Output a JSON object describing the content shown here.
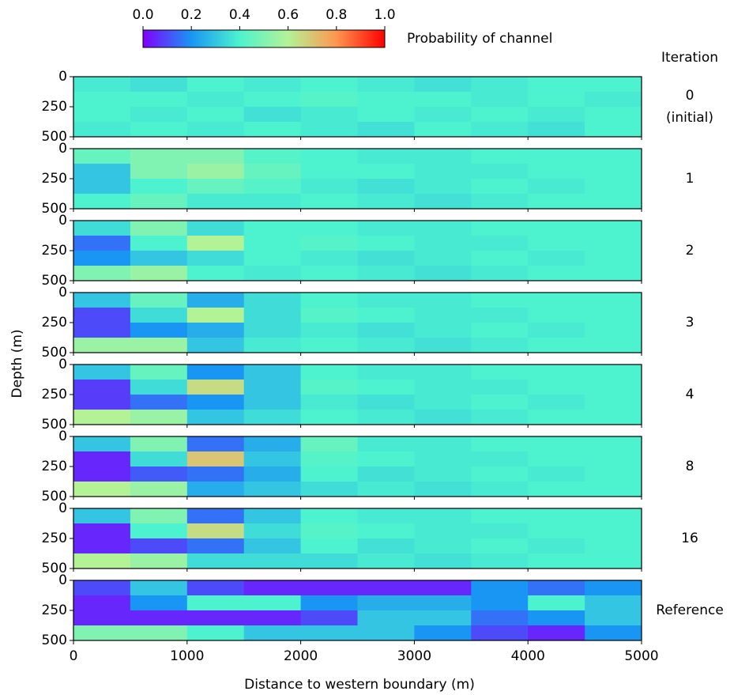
{
  "chart_data": {
    "type": "heatmap",
    "xlabel": "Distance to western boundary (m)",
    "ylabel": "Depth (m)",
    "panel_title": "Iteration",
    "xlim": [
      0,
      5000
    ],
    "xticks": [
      0,
      1000,
      2000,
      3000,
      4000,
      5000
    ],
    "ylim": [
      500,
      0
    ],
    "yticks": [
      0,
      250,
      500
    ],
    "x_edges": [
      0,
      500,
      1000,
      1500,
      2000,
      2500,
      3000,
      3500,
      4000,
      4500,
      5000
    ],
    "y_edges": [
      0,
      125,
      250,
      375,
      500
    ],
    "colorbar": {
      "label": "Probability of channel",
      "lim": [
        0,
        1
      ],
      "ticks": [
        {
          "value": 0,
          "label": "0.0"
        },
        {
          "value": 0.2,
          "label": "0.2"
        },
        {
          "value": 0.4,
          "label": "0.4"
        },
        {
          "value": 0.6,
          "label": "0.6"
        },
        {
          "value": 0.8,
          "label": "0.8"
        },
        {
          "value": 1,
          "label": "1.0"
        }
      ],
      "colors": [
        "#8000ff",
        "#1996f3",
        "#4df3ce",
        "#b3f396",
        "#ff964f",
        "#ff0000"
      ]
    },
    "panels": [
      {
        "name": "0",
        "note": "(initial)",
        "values": [
          [
            0.38,
            0.36,
            0.4,
            0.38,
            0.4,
            0.38,
            0.36,
            0.38,
            0.4,
            0.4
          ],
          [
            0.4,
            0.4,
            0.38,
            0.4,
            0.42,
            0.4,
            0.4,
            0.38,
            0.4,
            0.38
          ],
          [
            0.4,
            0.38,
            0.4,
            0.36,
            0.38,
            0.4,
            0.38,
            0.4,
            0.38,
            0.4
          ],
          [
            0.38,
            0.4,
            0.38,
            0.4,
            0.38,
            0.36,
            0.4,
            0.38,
            0.36,
            0.4
          ]
        ]
      },
      {
        "name": "1",
        "values": [
          [
            0.45,
            0.5,
            0.5,
            0.42,
            0.4,
            0.38,
            0.38,
            0.4,
            0.4,
            0.4
          ],
          [
            0.3,
            0.5,
            0.55,
            0.45,
            0.4,
            0.4,
            0.38,
            0.38,
            0.4,
            0.4
          ],
          [
            0.3,
            0.4,
            0.45,
            0.42,
            0.38,
            0.36,
            0.38,
            0.4,
            0.38,
            0.4
          ],
          [
            0.4,
            0.45,
            0.38,
            0.38,
            0.4,
            0.38,
            0.36,
            0.38,
            0.4,
            0.4
          ]
        ]
      },
      {
        "name": "2",
        "values": [
          [
            0.35,
            0.5,
            0.35,
            0.4,
            0.4,
            0.38,
            0.38,
            0.4,
            0.4,
            0.4
          ],
          [
            0.15,
            0.4,
            0.6,
            0.4,
            0.42,
            0.4,
            0.38,
            0.38,
            0.4,
            0.4
          ],
          [
            0.2,
            0.3,
            0.35,
            0.4,
            0.38,
            0.36,
            0.38,
            0.4,
            0.38,
            0.4
          ],
          [
            0.5,
            0.55,
            0.4,
            0.38,
            0.4,
            0.38,
            0.36,
            0.38,
            0.4,
            0.4
          ]
        ]
      },
      {
        "name": "3",
        "values": [
          [
            0.3,
            0.45,
            0.25,
            0.35,
            0.4,
            0.38,
            0.38,
            0.4,
            0.4,
            0.4
          ],
          [
            0.1,
            0.35,
            0.6,
            0.35,
            0.42,
            0.4,
            0.38,
            0.38,
            0.4,
            0.4
          ],
          [
            0.1,
            0.2,
            0.25,
            0.35,
            0.38,
            0.36,
            0.38,
            0.4,
            0.38,
            0.4
          ],
          [
            0.55,
            0.55,
            0.3,
            0.38,
            0.4,
            0.38,
            0.36,
            0.38,
            0.4,
            0.4
          ]
        ]
      },
      {
        "name": "4",
        "values": [
          [
            0.3,
            0.45,
            0.2,
            0.3,
            0.4,
            0.38,
            0.38,
            0.4,
            0.4,
            0.4
          ],
          [
            0.08,
            0.35,
            0.65,
            0.3,
            0.42,
            0.4,
            0.38,
            0.38,
            0.4,
            0.4
          ],
          [
            0.08,
            0.15,
            0.2,
            0.3,
            0.38,
            0.36,
            0.38,
            0.4,
            0.38,
            0.4
          ],
          [
            0.6,
            0.55,
            0.3,
            0.35,
            0.4,
            0.38,
            0.36,
            0.38,
            0.4,
            0.4
          ]
        ]
      },
      {
        "name": "8",
        "values": [
          [
            0.3,
            0.5,
            0.15,
            0.25,
            0.45,
            0.38,
            0.38,
            0.4,
            0.4,
            0.4
          ],
          [
            0.05,
            0.35,
            0.7,
            0.3,
            0.42,
            0.4,
            0.38,
            0.38,
            0.4,
            0.4
          ],
          [
            0.05,
            0.12,
            0.15,
            0.25,
            0.4,
            0.36,
            0.38,
            0.4,
            0.38,
            0.4
          ],
          [
            0.6,
            0.55,
            0.25,
            0.3,
            0.35,
            0.38,
            0.36,
            0.38,
            0.4,
            0.4
          ]
        ]
      },
      {
        "name": "16",
        "values": [
          [
            0.3,
            0.5,
            0.15,
            0.3,
            0.4,
            0.38,
            0.38,
            0.4,
            0.4,
            0.4
          ],
          [
            0.05,
            0.4,
            0.65,
            0.35,
            0.42,
            0.4,
            0.38,
            0.38,
            0.4,
            0.4
          ],
          [
            0.05,
            0.1,
            0.15,
            0.3,
            0.4,
            0.36,
            0.38,
            0.4,
            0.38,
            0.4
          ],
          [
            0.6,
            0.55,
            0.35,
            0.35,
            0.35,
            0.38,
            0.36,
            0.38,
            0.4,
            0.4
          ]
        ]
      },
      {
        "name": "Reference",
        "values": [
          [
            0.1,
            0.3,
            0.1,
            0.05,
            0.05,
            0.05,
            0.05,
            0.2,
            0.15,
            0.2
          ],
          [
            0.05,
            0.2,
            0.4,
            0.4,
            0.2,
            0.25,
            0.25,
            0.2,
            0.4,
            0.3
          ],
          [
            0.05,
            0.05,
            0.05,
            0.05,
            0.1,
            0.3,
            0.3,
            0.15,
            0.2,
            0.3
          ],
          [
            0.5,
            0.5,
            0.4,
            0.3,
            0.3,
            0.3,
            0.2,
            0.1,
            0.05,
            0.2
          ]
        ]
      }
    ]
  }
}
